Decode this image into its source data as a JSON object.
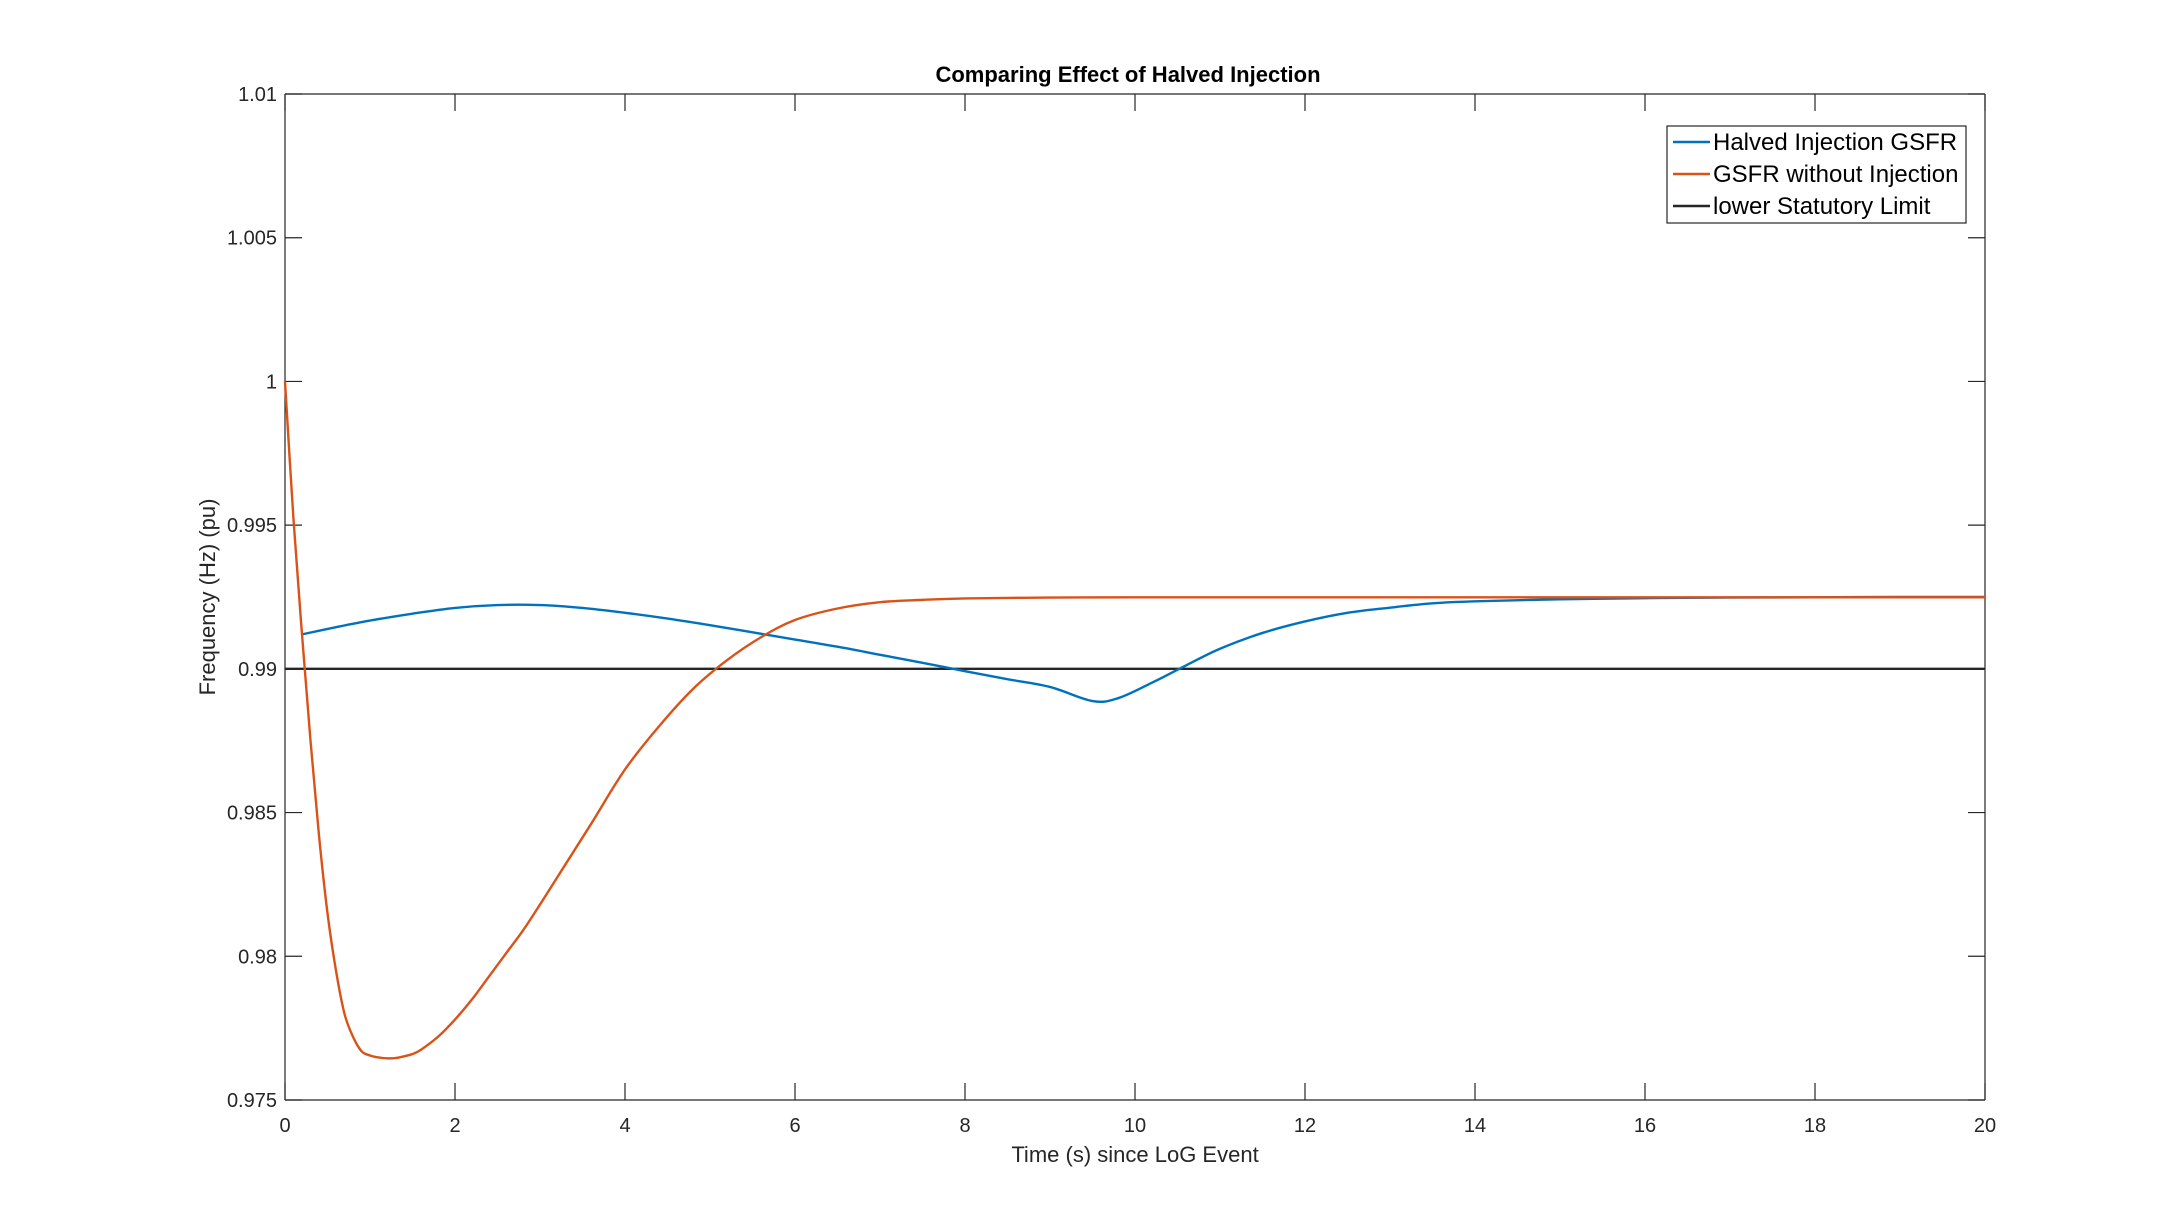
{
  "chart_data": {
    "type": "line",
    "title": "Comparing Effect of Halved Injection",
    "xlabel": "Time (s) since LoG Event",
    "ylabel": "Frequency (Hz) (pu)",
    "xlim": [
      0,
      20
    ],
    "ylim": [
      0.975,
      1.01
    ],
    "xticks": [
      "0",
      "2",
      "4",
      "6",
      "8",
      "10",
      "12",
      "14",
      "16",
      "18",
      "20"
    ],
    "yticks": [
      "0.975",
      "0.98",
      "0.985",
      "0.99",
      "0.995",
      "1",
      "1.005",
      "1.01"
    ],
    "grid": false,
    "legend_position": "top-right",
    "series": [
      {
        "name": "Halved Injection GSFR",
        "color": "#0072BD",
        "x": [
          0.2,
          0.6,
          1.0,
          1.5,
          2.0,
          2.5,
          3.0,
          3.5,
          4.0,
          4.5,
          5.0,
          5.5,
          6.0,
          6.5,
          7.0,
          7.5,
          8.0,
          8.5,
          9.0,
          9.5,
          9.8,
          10.2,
          10.6,
          11.0,
          11.5,
          12.0,
          12.5,
          13.0,
          13.5,
          14.0,
          15.0,
          16.0,
          17.0,
          18.0,
          19.0,
          20.0
        ],
        "y": [
          0.9912,
          0.99145,
          0.99168,
          0.99192,
          0.99212,
          0.99222,
          0.99222,
          0.99212,
          0.99195,
          0.99175,
          0.99152,
          0.99127,
          0.99102,
          0.99077,
          0.99049,
          0.99021,
          0.98992,
          0.98964,
          0.98937,
          0.98888,
          0.98898,
          0.98952,
          0.99012,
          0.9907,
          0.99125,
          0.99165,
          0.99195,
          0.99213,
          0.99228,
          0.99235,
          0.99242,
          0.99246,
          0.99248,
          0.99249,
          0.9925,
          0.9925
        ]
      },
      {
        "name": "GSFR without Injection",
        "color": "#D95319",
        "x": [
          0,
          0.1,
          0.2,
          0.3,
          0.4,
          0.5,
          0.6,
          0.7,
          0.8,
          0.9,
          1.0,
          1.1,
          1.2,
          1.3,
          1.4,
          1.5,
          1.6,
          1.8,
          2.0,
          2.2,
          2.4,
          2.6,
          2.8,
          3.0,
          3.3,
          3.6,
          4.0,
          4.4,
          4.8,
          5.2,
          5.6,
          6.0,
          6.5,
          7.0,
          7.5,
          8.0,
          9.0,
          10.0,
          12.0,
          14.0,
          16.0,
          18.0,
          20.0
        ],
        "y": [
          1.0,
          0.9952,
          0.9912,
          0.9875,
          0.9842,
          0.9815,
          0.9795,
          0.978,
          0.9772,
          0.9767,
          0.97655,
          0.97648,
          0.97645,
          0.97646,
          0.97652,
          0.9766,
          0.97675,
          0.9772,
          0.9778,
          0.9785,
          0.9793,
          0.9801,
          0.9809,
          0.9818,
          0.9832,
          0.9846,
          0.9865,
          0.988,
          0.9893,
          0.9903,
          0.9911,
          0.9917,
          0.9921,
          0.99232,
          0.9924,
          0.99245,
          0.99248,
          0.99249,
          0.99249,
          0.99249,
          0.99249,
          0.99249,
          0.99249
        ]
      },
      {
        "name": "lower Statutory Limit",
        "color": "#262626",
        "x": [
          0,
          20
        ],
        "y": [
          0.99,
          0.99
        ]
      }
    ]
  }
}
